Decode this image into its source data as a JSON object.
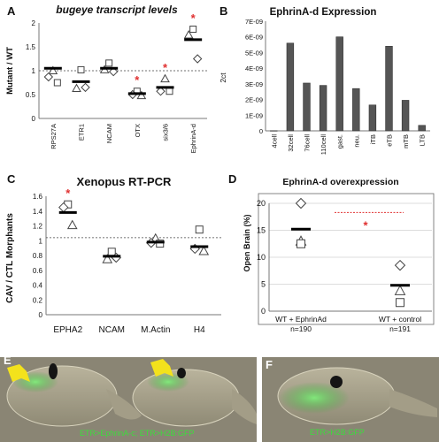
{
  "panels": {
    "A": "A",
    "B": "B",
    "C": "C",
    "D": "D",
    "E": "E",
    "F": "F"
  },
  "chart_data": [
    {
      "id": "A",
      "type": "scatter",
      "title": "bugeye transcript levels",
      "ylabel": "Mutant / WT",
      "ylim": [
        0,
        2
      ],
      "yticks": [
        "0",
        "0.5",
        "1",
        "1.5",
        "2"
      ],
      "reference_line": 1,
      "categories": [
        "RPS27A",
        "ETR1",
        "NCAM",
        "OTX",
        "six3/6",
        "EphrinA-d"
      ],
      "means": [
        1.05,
        0.77,
        1.05,
        0.52,
        0.65,
        1.65
      ],
      "points": [
        [
          {
            "m": "triangle",
            "y": 1.0
          },
          {
            "m": "diamond",
            "y": 0.87
          },
          {
            "m": "square",
            "y": 0.75
          }
        ],
        [
          {
            "m": "square",
            "y": 1.02
          },
          {
            "m": "triangle",
            "y": 0.63
          },
          {
            "m": "diamond",
            "y": 0.65
          }
        ],
        [
          {
            "m": "square",
            "y": 1.16
          },
          {
            "m": "triangle",
            "y": 1.02
          },
          {
            "m": "diamond",
            "y": 0.98
          }
        ],
        [
          {
            "m": "square",
            "y": 0.57
          },
          {
            "m": "diamond",
            "y": 0.5
          },
          {
            "m": "triangle",
            "y": 0.48
          }
        ],
        [
          {
            "m": "triangle",
            "y": 0.83
          },
          {
            "m": "diamond",
            "y": 0.57
          },
          {
            "m": "square",
            "y": 0.57
          }
        ],
        [
          {
            "m": "square",
            "y": 1.87
          },
          {
            "m": "triangle",
            "y": 1.75
          },
          {
            "m": "diamond",
            "y": 1.25
          }
        ]
      ],
      "significant": [
        false,
        false,
        false,
        true,
        true,
        true
      ],
      "colors": {
        "star": "#e03030",
        "marker_edge": "#444444"
      }
    },
    {
      "id": "B",
      "type": "bar",
      "title": "EphrinA-d Expression",
      "ylabel": "2ct",
      "ylim": [
        0,
        7e-09
      ],
      "yticks": [
        "0",
        "1E-09",
        "2E-09",
        "3E-09",
        "4E-09",
        "5E-09",
        "6E-09",
        "7E-09"
      ],
      "categories": [
        "4cell",
        "32cell",
        "76cell",
        "110cell",
        "gast.",
        "neu.",
        "iTB",
        "eTB",
        "mTB",
        "LTB"
      ],
      "values": [
        1e-11,
        5.6e-09,
        3.05e-09,
        2.9e-09,
        6e-09,
        2.7e-09,
        1.65e-09,
        5.4e-09,
        1.95e-09,
        3.5e-10
      ],
      "colors": {
        "bar": "#555555"
      }
    },
    {
      "id": "C",
      "type": "scatter",
      "title": "Xenopus RT-PCR",
      "ylabel": "CAV / CTL Morphants",
      "ylim": [
        0,
        1.6
      ],
      "yticks": [
        "0",
        "0.2",
        "0.4",
        "0.6",
        "0.8",
        "1",
        "1.2",
        "1.4",
        "1.6"
      ],
      "reference_line": 1.04,
      "categories": [
        "EPHA2",
        "NCAM",
        "M.Actin",
        "H4"
      ],
      "means": [
        1.38,
        0.79,
        0.98,
        0.92
      ],
      "points": [
        [
          {
            "m": "square",
            "y": 1.49
          },
          {
            "m": "diamond",
            "y": 1.45
          },
          {
            "m": "triangle",
            "y": 1.21
          }
        ],
        [
          {
            "m": "square",
            "y": 0.85
          },
          {
            "m": "triangle",
            "y": 0.75
          },
          {
            "m": "diamond",
            "y": 0.77
          }
        ],
        [
          {
            "m": "triangle",
            "y": 1.03
          },
          {
            "m": "diamond",
            "y": 0.97
          },
          {
            "m": "square",
            "y": 0.96
          }
        ],
        [
          {
            "m": "square",
            "y": 1.15
          },
          {
            "m": "diamond",
            "y": 0.89
          },
          {
            "m": "triangle",
            "y": 0.86
          }
        ]
      ],
      "significant": [
        true,
        false,
        false,
        false
      ],
      "colors": {
        "star": "#e03030",
        "marker_edge": "#444444"
      }
    },
    {
      "id": "D",
      "type": "scatter",
      "title": "EphrinA-d overexpression",
      "ylabel": "Open Brain (%)",
      "ylim": [
        0,
        20
      ],
      "yticks": [
        "0",
        "5",
        "10",
        "15",
        "20"
      ],
      "categories": [
        "WT + EphrinAd",
        "WT + control"
      ],
      "n_labels": [
        "n=190",
        "n=191"
      ],
      "means": [
        15.2,
        4.8
      ],
      "points": [
        [
          {
            "m": "diamond",
            "y": 20.0
          },
          {
            "m": "triangle",
            "y": 13.0
          },
          {
            "m": "square",
            "y": 12.5
          }
        ],
        [
          {
            "m": "diamond",
            "y": 8.5
          },
          {
            "m": "triangle",
            "y": 3.8
          },
          {
            "m": "square",
            "y": 1.6
          }
        ]
      ],
      "significance_bracket": true,
      "colors": {
        "star": "#e03030",
        "bracket": "#e03030",
        "marker_edge": "#444444"
      }
    }
  ],
  "images": {
    "E": {
      "caption": "ETR>EphrinA-c; ETR>H2B:GFP",
      "caption_color": "#3ddc3d",
      "arrow_color": "#f3e21c"
    },
    "F": {
      "caption": "ETR>H2B:GFP",
      "caption_color": "#3ddc3d"
    }
  }
}
